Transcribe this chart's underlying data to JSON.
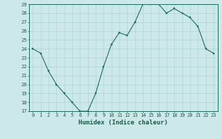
{
  "x": [
    0,
    1,
    2,
    3,
    4,
    5,
    6,
    7,
    8,
    9,
    10,
    11,
    12,
    13,
    14,
    15,
    16,
    17,
    18,
    19,
    20,
    21,
    22,
    23
  ],
  "y": [
    24,
    23.5,
    21.5,
    20,
    19,
    18,
    17,
    17,
    19,
    22,
    24.5,
    25.8,
    25.5,
    27,
    29,
    29,
    29,
    28,
    28.5,
    28,
    27.5,
    26.5,
    24,
    23.5
  ],
  "title": "",
  "xlabel": "Humidex (Indice chaleur)",
  "ylabel": "",
  "ylim": [
    17,
    29
  ],
  "xlim": [
    -0.5,
    23.5
  ],
  "yticks": [
    17,
    18,
    19,
    20,
    21,
    22,
    23,
    24,
    25,
    26,
    27,
    28,
    29
  ],
  "xticks": [
    0,
    1,
    2,
    3,
    4,
    5,
    6,
    7,
    8,
    9,
    10,
    11,
    12,
    13,
    14,
    15,
    16,
    17,
    18,
    19,
    20,
    21,
    22,
    23
  ],
  "line_color": "#1a6b5a",
  "marker_color": "#1a6b5a",
  "bg_color": "#cce8e8",
  "grid_color": "#aad4d4",
  "tick_label_color": "#1a5a4a",
  "xlabel_color": "#1a5a4a",
  "fontsize_ticks": 5.0,
  "fontsize_xlabel": 6.5
}
